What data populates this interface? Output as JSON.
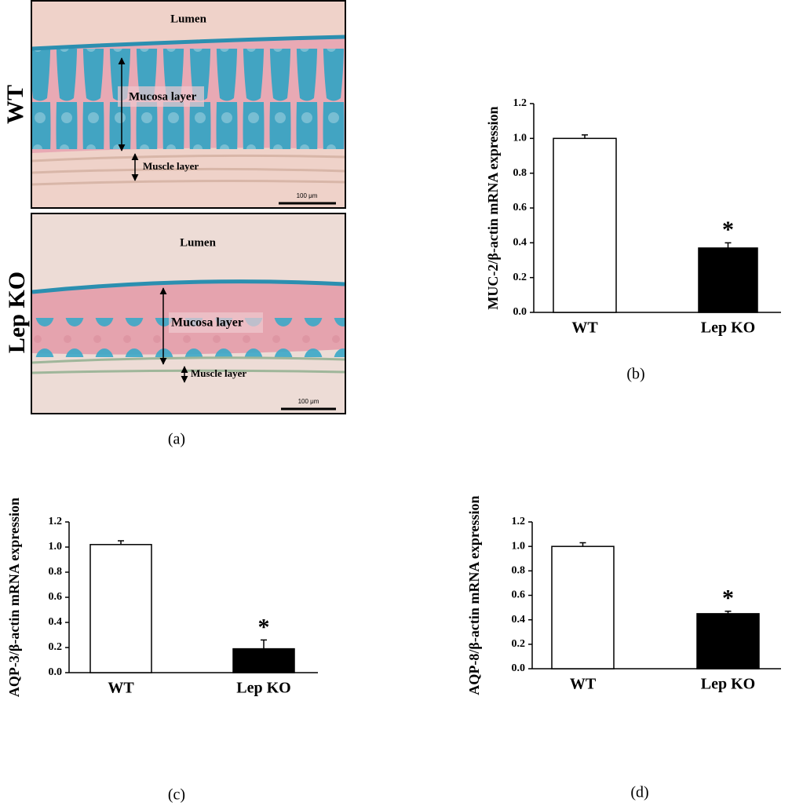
{
  "histology": {
    "rows": [
      {
        "label": "WT",
        "lumen": "Lumen",
        "mucosa": "Mucosa layer",
        "muscle": "Muscle layer",
        "scale": "100 μm"
      },
      {
        "label": "Lep KO",
        "lumen": "Lumen",
        "mucosa": "Mucosa layer",
        "muscle": "Muscle layer",
        "scale": "100 μm"
      }
    ],
    "caption": "(a)"
  },
  "chart_data": [
    {
      "type": "bar",
      "caption": "(b)",
      "y_label": "MUC-2/β-actin mRNA expression",
      "categories": [
        "WT",
        "Lep KO"
      ],
      "values": [
        1.0,
        0.37
      ],
      "errors": [
        0.02,
        0.03
      ],
      "colors": [
        "#ffffff",
        "#000000"
      ],
      "ylim": [
        0,
        1.2
      ],
      "yticks": [
        {
          "value": 0,
          "label": "0.0"
        },
        0.2,
        0.4,
        0.6,
        0.8,
        {
          "value": 1,
          "label": "1.0"
        },
        1.2
      ],
      "annotations": [
        {
          "text": "*",
          "category": "Lep KO"
        }
      ]
    },
    {
      "type": "bar",
      "caption": "(c)",
      "y_label": "AQP-3/β-actin mRNA expression",
      "categories": [
        "WT",
        "Lep KO"
      ],
      "values": [
        1.02,
        0.19
      ],
      "errors": [
        0.03,
        0.07
      ],
      "colors": [
        "#ffffff",
        "#000000"
      ],
      "ylim": [
        0,
        1.2
      ],
      "yticks": [
        {
          "value": 0,
          "label": "0.0"
        },
        0.2,
        0.4,
        0.6,
        0.8,
        {
          "value": 1,
          "label": "1.0"
        },
        1.2
      ],
      "annotations": [
        {
          "text": "*",
          "category": "Lep KO"
        }
      ]
    },
    {
      "type": "bar",
      "caption": "(d)",
      "y_label": "AQP-8/β-actin mRNA expression",
      "categories": [
        "WT",
        "Lep KO"
      ],
      "values": [
        1.0,
        0.45
      ],
      "errors": [
        0.03,
        0.02
      ],
      "colors": [
        "#ffffff",
        "#000000"
      ],
      "ylim": [
        0,
        1.2
      ],
      "yticks": [
        {
          "value": 0,
          "label": "0.0"
        },
        0.2,
        0.4,
        0.6,
        0.8,
        {
          "value": 1,
          "label": "1.0"
        },
        1.2
      ],
      "annotations": [
        {
          "text": "*",
          "category": "Lep KO"
        }
      ]
    }
  ]
}
